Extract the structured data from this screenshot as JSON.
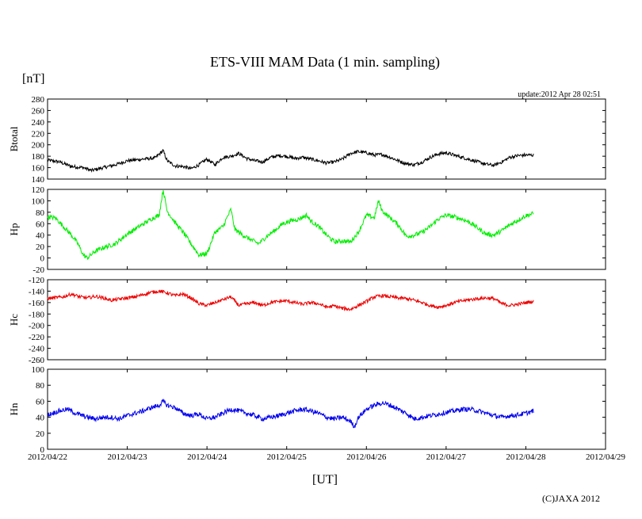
{
  "chart_data": {
    "type": "line",
    "title": "ETS-VIII MAM Data (1 min. sampling)",
    "unit_label": "[nT]",
    "update_text": "update:2012 Apr 28 02:51",
    "xlabel": "[UT]",
    "copyright": "(C)JAXA 2012",
    "x_ticks": [
      "2012/04/22",
      "2012/04/23",
      "2012/04/24",
      "2012/04/25",
      "2012/04/26",
      "2012/04/27",
      "2012/04/28",
      "2012/04/29"
    ],
    "xlim": [
      0,
      7
    ],
    "panels": [
      {
        "name": "Btotal",
        "ylabel": "Btotal",
        "color": "#000000",
        "ylim": [
          140,
          280
        ],
        "yticks": [
          140,
          160,
          180,
          200,
          220,
          240,
          260,
          280
        ],
        "points": [
          [
            0,
            173
          ],
          [
            0.15,
            170
          ],
          [
            0.3,
            162
          ],
          [
            0.45,
            160
          ],
          [
            0.55,
            155
          ],
          [
            0.7,
            160
          ],
          [
            0.85,
            165
          ],
          [
            1.0,
            172
          ],
          [
            1.2,
            175
          ],
          [
            1.35,
            177
          ],
          [
            1.45,
            190
          ],
          [
            1.5,
            172
          ],
          [
            1.6,
            163
          ],
          [
            1.7,
            162
          ],
          [
            1.8,
            158
          ],
          [
            1.9,
            165
          ],
          [
            2.0,
            175
          ],
          [
            2.1,
            165
          ],
          [
            2.2,
            178
          ],
          [
            2.3,
            180
          ],
          [
            2.4,
            185
          ],
          [
            2.5,
            176
          ],
          [
            2.6,
            172
          ],
          [
            2.7,
            170
          ],
          [
            2.8,
            178
          ],
          [
            2.9,
            181
          ],
          [
            3.0,
            180
          ],
          [
            3.1,
            176
          ],
          [
            3.2,
            178
          ],
          [
            3.3,
            175
          ],
          [
            3.4,
            172
          ],
          [
            3.5,
            168
          ],
          [
            3.6,
            170
          ],
          [
            3.7,
            175
          ],
          [
            3.8,
            185
          ],
          [
            3.9,
            188
          ],
          [
            4.0,
            186
          ],
          [
            4.1,
            182
          ],
          [
            4.2,
            183
          ],
          [
            4.3,
            178
          ],
          [
            4.4,
            172
          ],
          [
            4.5,
            167
          ],
          [
            4.6,
            165
          ],
          [
            4.7,
            170
          ],
          [
            4.8,
            178
          ],
          [
            4.9,
            184
          ],
          [
            5.0,
            186
          ],
          [
            5.1,
            182
          ],
          [
            5.2,
            178
          ],
          [
            5.3,
            174
          ],
          [
            5.4,
            170
          ],
          [
            5.5,
            166
          ],
          [
            5.6,
            164
          ],
          [
            5.7,
            170
          ],
          [
            5.8,
            178
          ],
          [
            5.9,
            181
          ],
          [
            6.0,
            182
          ],
          [
            6.1,
            182
          ]
        ],
        "noise": 3
      },
      {
        "name": "Hp",
        "ylabel": "Hp",
        "color": "#00ee00",
        "ylim": [
          -20,
          120
        ],
        "yticks": [
          -20,
          0,
          20,
          40,
          60,
          80,
          100,
          120
        ],
        "points": [
          [
            0,
            72
          ],
          [
            0.1,
            70
          ],
          [
            0.2,
            55
          ],
          [
            0.3,
            40
          ],
          [
            0.38,
            25
          ],
          [
            0.45,
            5
          ],
          [
            0.5,
            0
          ],
          [
            0.6,
            12
          ],
          [
            0.7,
            18
          ],
          [
            0.85,
            25
          ],
          [
            1.0,
            42
          ],
          [
            1.15,
            55
          ],
          [
            1.3,
            68
          ],
          [
            1.4,
            75
          ],
          [
            1.45,
            120
          ],
          [
            1.5,
            82
          ],
          [
            1.6,
            62
          ],
          [
            1.7,
            45
          ],
          [
            1.8,
            25
          ],
          [
            1.9,
            5
          ],
          [
            2.0,
            8
          ],
          [
            2.1,
            45
          ],
          [
            2.2,
            55
          ],
          [
            2.3,
            85
          ],
          [
            2.35,
            50
          ],
          [
            2.45,
            40
          ],
          [
            2.55,
            32
          ],
          [
            2.65,
            25
          ],
          [
            2.75,
            38
          ],
          [
            2.85,
            48
          ],
          [
            2.95,
            60
          ],
          [
            3.05,
            65
          ],
          [
            3.15,
            68
          ],
          [
            3.25,
            75
          ],
          [
            3.3,
            65
          ],
          [
            3.4,
            55
          ],
          [
            3.5,
            40
          ],
          [
            3.6,
            28
          ],
          [
            3.7,
            30
          ],
          [
            3.8,
            28
          ],
          [
            3.9,
            45
          ],
          [
            4.0,
            75
          ],
          [
            4.1,
            70
          ],
          [
            4.15,
            100
          ],
          [
            4.2,
            82
          ],
          [
            4.3,
            70
          ],
          [
            4.4,
            58
          ],
          [
            4.5,
            38
          ],
          [
            4.6,
            40
          ],
          [
            4.7,
            45
          ],
          [
            4.8,
            55
          ],
          [
            4.9,
            68
          ],
          [
            5.0,
            75
          ],
          [
            5.1,
            72
          ],
          [
            5.2,
            68
          ],
          [
            5.3,
            62
          ],
          [
            5.4,
            52
          ],
          [
            5.5,
            42
          ],
          [
            5.6,
            40
          ],
          [
            5.7,
            48
          ],
          [
            5.8,
            58
          ],
          [
            5.9,
            66
          ],
          [
            6.0,
            74
          ],
          [
            6.1,
            78
          ]
        ],
        "noise": 4
      },
      {
        "name": "Hc",
        "ylabel": "Hc",
        "color": "#ee0000",
        "ylim": [
          -260,
          -120
        ],
        "yticks": [
          -260,
          -240,
          -220,
          -200,
          -180,
          -160,
          -140,
          -120
        ],
        "points": [
          [
            0,
            -153
          ],
          [
            0.2,
            -150
          ],
          [
            0.3,
            -145
          ],
          [
            0.4,
            -150
          ],
          [
            0.5,
            -152
          ],
          [
            0.6,
            -149
          ],
          [
            0.7,
            -152
          ],
          [
            0.8,
            -156
          ],
          [
            1.0,
            -152
          ],
          [
            1.1,
            -150
          ],
          [
            1.2,
            -146
          ],
          [
            1.3,
            -142
          ],
          [
            1.4,
            -140
          ],
          [
            1.5,
            -143
          ],
          [
            1.6,
            -148
          ],
          [
            1.7,
            -145
          ],
          [
            1.8,
            -152
          ],
          [
            1.9,
            -162
          ],
          [
            2.0,
            -165
          ],
          [
            2.1,
            -160
          ],
          [
            2.2,
            -155
          ],
          [
            2.3,
            -150
          ],
          [
            2.4,
            -165
          ],
          [
            2.5,
            -162
          ],
          [
            2.6,
            -160
          ],
          [
            2.7,
            -165
          ],
          [
            2.8,
            -160
          ],
          [
            2.9,
            -158
          ],
          [
            3.0,
            -157
          ],
          [
            3.1,
            -160
          ],
          [
            3.2,
            -163
          ],
          [
            3.3,
            -160
          ],
          [
            3.4,
            -162
          ],
          [
            3.5,
            -168
          ],
          [
            3.6,
            -166
          ],
          [
            3.7,
            -170
          ],
          [
            3.8,
            -172
          ],
          [
            3.9,
            -165
          ],
          [
            4.0,
            -158
          ],
          [
            4.1,
            -150
          ],
          [
            4.2,
            -148
          ],
          [
            4.3,
            -150
          ],
          [
            4.4,
            -152
          ],
          [
            4.5,
            -153
          ],
          [
            4.6,
            -156
          ],
          [
            4.7,
            -160
          ],
          [
            4.8,
            -165
          ],
          [
            4.9,
            -168
          ],
          [
            5.0,
            -165
          ],
          [
            5.1,
            -160
          ],
          [
            5.2,
            -157
          ],
          [
            5.3,
            -155
          ],
          [
            5.4,
            -153
          ],
          [
            5.5,
            -152
          ],
          [
            5.6,
            -153
          ],
          [
            5.7,
            -162
          ],
          [
            5.8,
            -165
          ],
          [
            5.9,
            -163
          ],
          [
            6.0,
            -160
          ],
          [
            6.1,
            -158
          ]
        ],
        "noise": 3
      },
      {
        "name": "Hn",
        "ylabel": "Hn",
        "color": "#0000ee",
        "ylim": [
          0,
          100
        ],
        "yticks": [
          0,
          20,
          40,
          60,
          80,
          100
        ],
        "points": [
          [
            0,
            43
          ],
          [
            0.15,
            48
          ],
          [
            0.25,
            50
          ],
          [
            0.35,
            45
          ],
          [
            0.5,
            40
          ],
          [
            0.6,
            38
          ],
          [
            0.7,
            40
          ],
          [
            0.8,
            40
          ],
          [
            0.9,
            38
          ],
          [
            1.0,
            42
          ],
          [
            1.1,
            45
          ],
          [
            1.2,
            48
          ],
          [
            1.3,
            52
          ],
          [
            1.4,
            55
          ],
          [
            1.45,
            60
          ],
          [
            1.5,
            55
          ],
          [
            1.6,
            52
          ],
          [
            1.7,
            45
          ],
          [
            1.8,
            42
          ],
          [
            1.9,
            44
          ],
          [
            2.0,
            38
          ],
          [
            2.1,
            40
          ],
          [
            2.2,
            45
          ],
          [
            2.3,
            50
          ],
          [
            2.4,
            48
          ],
          [
            2.5,
            45
          ],
          [
            2.6,
            42
          ],
          [
            2.7,
            38
          ],
          [
            2.8,
            40
          ],
          [
            2.9,
            42
          ],
          [
            3.0,
            45
          ],
          [
            3.1,
            48
          ],
          [
            3.2,
            50
          ],
          [
            3.3,
            48
          ],
          [
            3.4,
            45
          ],
          [
            3.5,
            40
          ],
          [
            3.6,
            38
          ],
          [
            3.7,
            40
          ],
          [
            3.8,
            35
          ],
          [
            3.85,
            28
          ],
          [
            3.9,
            40
          ],
          [
            4.0,
            50
          ],
          [
            4.1,
            55
          ],
          [
            4.2,
            58
          ],
          [
            4.3,
            55
          ],
          [
            4.4,
            50
          ],
          [
            4.5,
            45
          ],
          [
            4.6,
            38
          ],
          [
            4.7,
            40
          ],
          [
            4.8,
            42
          ],
          [
            4.9,
            44
          ],
          [
            5.0,
            46
          ],
          [
            5.1,
            48
          ],
          [
            5.2,
            50
          ],
          [
            5.3,
            50
          ],
          [
            5.4,
            48
          ],
          [
            5.5,
            45
          ],
          [
            5.6,
            42
          ],
          [
            5.7,
            40
          ],
          [
            5.8,
            42
          ],
          [
            5.9,
            43
          ],
          [
            6.0,
            45
          ],
          [
            6.1,
            48
          ]
        ],
        "noise": 3
      }
    ]
  }
}
